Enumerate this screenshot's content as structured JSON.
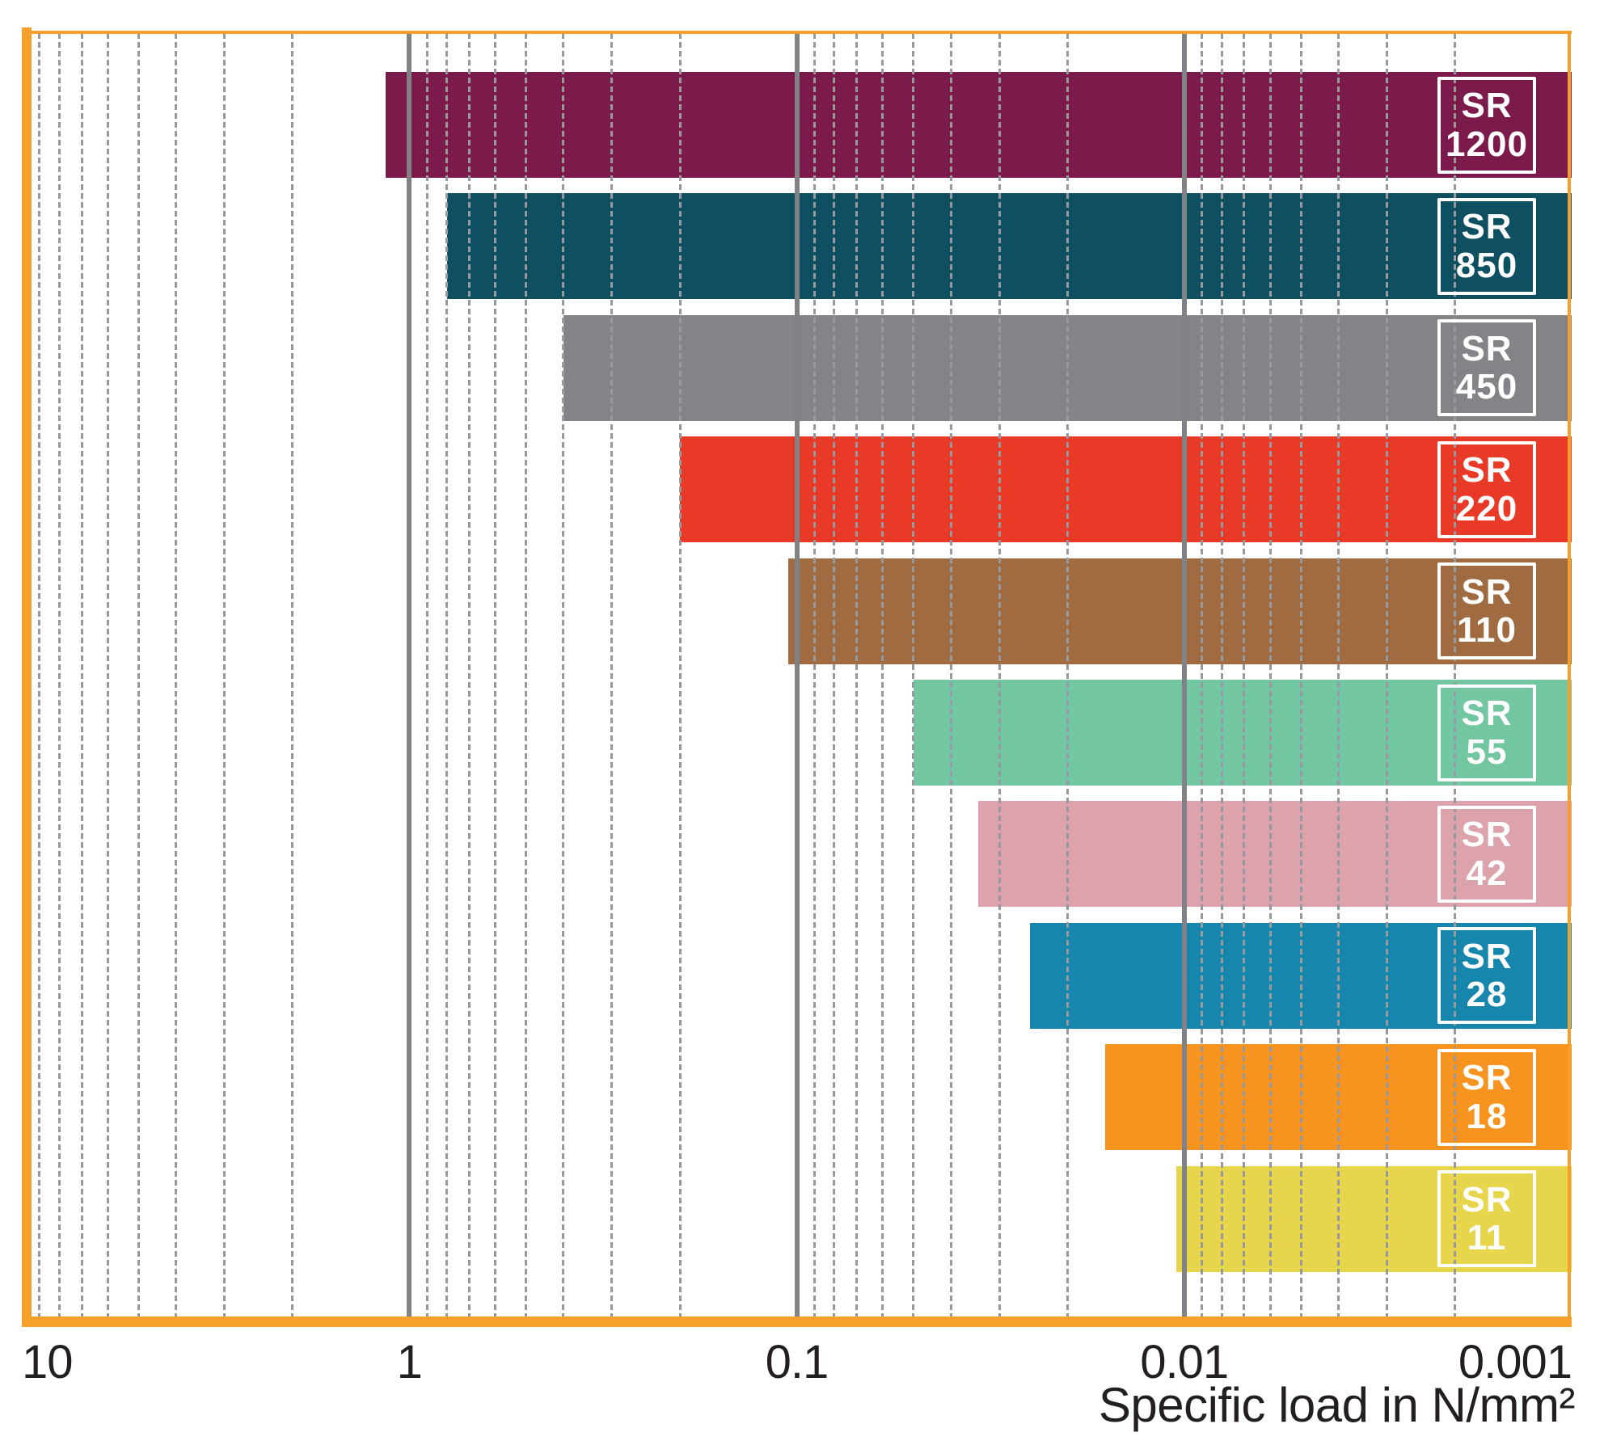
{
  "chart_data": {
    "type": "bar",
    "subtype": "horizontal-range-bars-on-reversed-log-axis",
    "title": "",
    "xlabel": "Specific load in N/mm²",
    "ylabel": "",
    "x_axis": {
      "scale": "log10-reversed",
      "max": 10,
      "min": 0.001,
      "ticks": [
        {
          "value": 10,
          "label": "10"
        },
        {
          "value": 1,
          "label": "1"
        },
        {
          "value": 0.1,
          "label": "0.1"
        },
        {
          "value": 0.01,
          "label": "0.01"
        },
        {
          "value": 0.001,
          "label": "0.001"
        }
      ]
    },
    "grid": {
      "major_values": [
        1,
        0.1,
        0.01
      ],
      "minor_values": [
        9,
        8,
        7,
        6,
        5,
        4,
        3,
        2,
        0.9,
        0.8,
        0.7,
        0.6,
        0.5,
        0.4,
        0.3,
        0.2,
        0.09,
        0.08,
        0.07,
        0.06,
        0.05,
        0.04,
        0.03,
        0.02,
        0.009,
        0.008,
        0.007,
        0.006,
        0.005,
        0.004,
        0.003,
        0.002
      ],
      "major_color": "#808285",
      "minor_color": "#97999C",
      "minor_dash": "dashed"
    },
    "frame_color": "#F6A02B",
    "text_color": "#231F20",
    "legend": "labels printed in white outlined boxes inside each bar",
    "bars": [
      {
        "name": "SR 1200",
        "label_line1": "SR",
        "label_line2": "1200",
        "load_from": 1.15,
        "load_to": 0.001,
        "color": "#7C1A4B"
      },
      {
        "name": "SR 850",
        "label_line1": "SR",
        "label_line2": "850",
        "load_from": 0.8,
        "load_to": 0.001,
        "color": "#0E5062"
      },
      {
        "name": "SR 450",
        "label_line1": "SR",
        "label_line2": "450",
        "load_from": 0.4,
        "load_to": 0.001,
        "color": "#828487"
      },
      {
        "name": "SR 220",
        "label_line1": "SR",
        "label_line2": "220",
        "load_from": 0.2,
        "load_to": 0.001,
        "color": "#E93A28"
      },
      {
        "name": "SR 110",
        "label_line1": "SR",
        "label_line2": "110",
        "load_from": 0.105,
        "load_to": 0.001,
        "color": "#A06B41"
      },
      {
        "name": "SR 55",
        "label_line1": "SR",
        "label_line2": "55",
        "load_from": 0.05,
        "load_to": 0.001,
        "color": "#72C6A1"
      },
      {
        "name": "SR 42",
        "label_line1": "SR",
        "label_line2": "42",
        "load_from": 0.034,
        "load_to": 0.001,
        "color": "#DCA3AC"
      },
      {
        "name": "SR 28",
        "label_line1": "SR",
        "label_line2": "28",
        "load_from": 0.025,
        "load_to": 0.001,
        "color": "#1786AD"
      },
      {
        "name": "SR 18",
        "label_line1": "SR",
        "label_line2": "18",
        "load_from": 0.016,
        "load_to": 0.001,
        "color": "#F79420"
      },
      {
        "name": "SR 11",
        "label_line1": "SR",
        "label_line2": "11",
        "load_from": 0.0105,
        "load_to": 0.001,
        "color": "#E7D64B"
      }
    ]
  }
}
